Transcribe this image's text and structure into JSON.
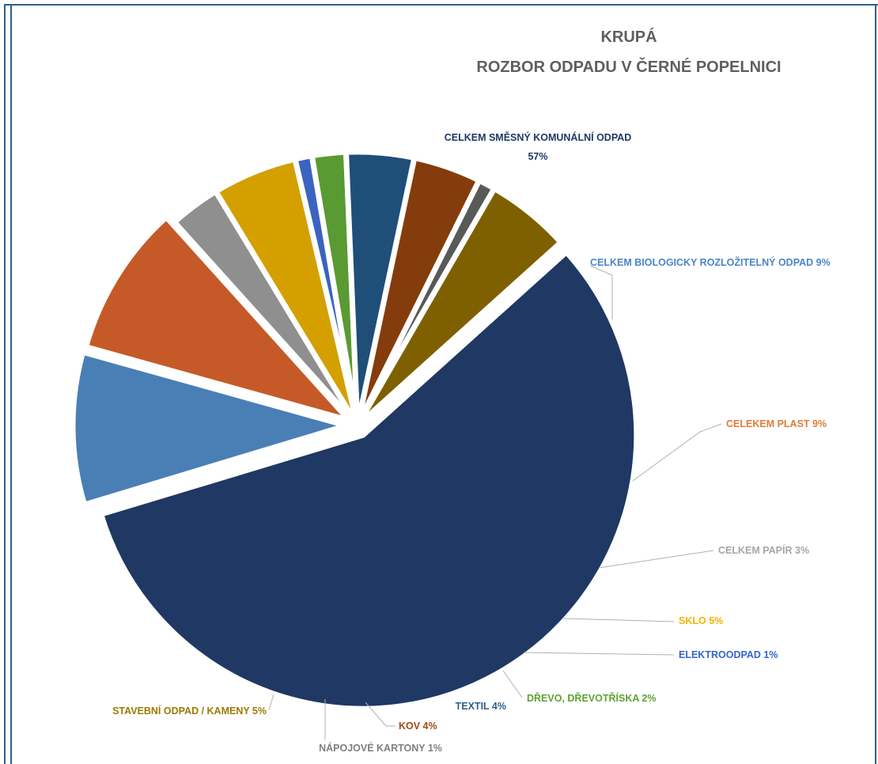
{
  "title": {
    "line1": "KRUPÁ",
    "line2": "ROZBOR ODPADU V ČERNÉ POPELNICI"
  },
  "chart_data": {
    "type": "pie",
    "title": "KRUPÁ ROZBOR ODPADU V ČERNÉ POPELNICI",
    "slices": [
      {
        "name": "CELKEM SMĚSNÝ KOMUNÁLNÍ ODPAD",
        "value": 57,
        "label": "57%",
        "color": "#1f3864"
      },
      {
        "name": "CELKEM BIOLOGICKY ROZLOŽITELNÝ ODPAD",
        "value": 9,
        "label": "CELKEM BIOLOGICKY ROZLOŽITELNÝ ODPAD 9%",
        "color": "#4a7fb5"
      },
      {
        "name": "CELEKEM PLAST",
        "value": 9,
        "label": "CELEKEM PLAST 9%",
        "color": "#c55a28"
      },
      {
        "name": "CELKEM PAPÍR",
        "value": 3,
        "label": "CELKEM PAPÍR 3%",
        "color": "#8f8f8f"
      },
      {
        "name": "SKLO",
        "value": 5,
        "label": "SKLO 5%",
        "color": "#d4a000"
      },
      {
        "name": "ELEKTROODPAD",
        "value": 1,
        "label": "ELEKTROODPAD 1%",
        "color": "#3a64c0"
      },
      {
        "name": "DŘEVO, DŘEVOTŘÍSKA",
        "value": 2,
        "label": "DŘEVO, DŘEVOTŘÍSKA 2%",
        "color": "#5a9a32"
      },
      {
        "name": "TEXTIL",
        "value": 4,
        "label": "TEXTIL 4%",
        "color": "#1f4e79"
      },
      {
        "name": "KOV",
        "value": 4,
        "label": "KOV 4%",
        "color": "#843c0c"
      },
      {
        "name": "NÁPOJOVÉ KARTONY",
        "value": 1,
        "label": "NÁPOJOVÉ KARTONY 1%",
        "color": "#595959"
      },
      {
        "name": "STAVEBNÍ ODPAD / KAMENY",
        "value": 5,
        "label": "STAVEBNÍ ODPAD / KAMENY 5%",
        "color": "#7f6000"
      }
    ],
    "label_colors": [
      "#1f3864",
      "#4a86c5",
      "#e07a38",
      "#a6a6a6",
      "#f0b400",
      "#3366cc",
      "#5fa332",
      "#2e5f8a",
      "#a8451a",
      "#7f7f7f",
      "#9c7a00"
    ]
  }
}
